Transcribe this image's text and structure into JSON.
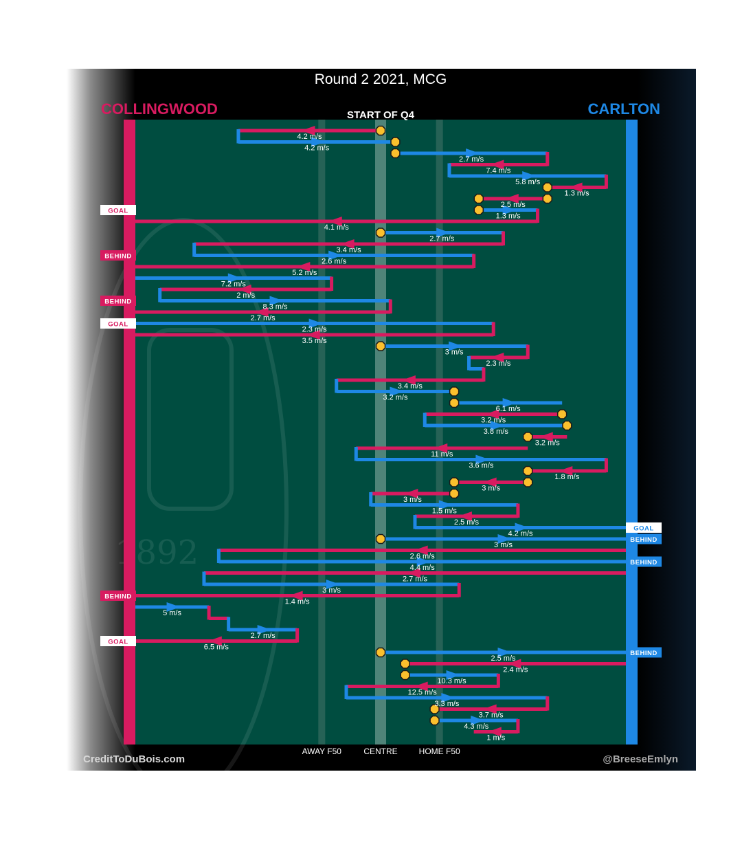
{
  "chart_data": {
    "type": "line",
    "title": "Round 2 2021, MCG",
    "subtitle": "START OF Q4",
    "teams": {
      "left": "COLLINGWOOD",
      "right": "CARLTON"
    },
    "colors": {
      "collingwood": "#d81b60",
      "carlton": "#1e88e5",
      "field": "#004d40",
      "background": "#000000",
      "stoppage": "#fbc02d"
    },
    "x_axis": {
      "range": [
        0,
        100
      ],
      "ticks": [
        {
          "x": 38,
          "label": "AWAY F50"
        },
        {
          "x": 50,
          "label": "CENTRE"
        },
        {
          "x": 62,
          "label": "HOME F50"
        }
      ]
    },
    "footer": {
      "left": "CreditToDuBois.com",
      "right": "@BreeseEmlyn"
    },
    "watermark": {
      "year": "1892"
    },
    "score_events": [
      {
        "side": "left",
        "label": "GOAL",
        "row": 8
      },
      {
        "side": "left",
        "label": "BEHIND",
        "row": 12
      },
      {
        "side": "left",
        "label": "BEHIND",
        "row": 16
      },
      {
        "side": "left",
        "label": "GOAL",
        "row": 18
      },
      {
        "side": "right",
        "label": "GOAL",
        "row": 36
      },
      {
        "side": "right",
        "label": "BEHIND",
        "row": 37
      },
      {
        "side": "right",
        "label": "BEHIND",
        "row": 39
      },
      {
        "side": "left",
        "label": "BEHIND",
        "row": 42
      },
      {
        "side": "left",
        "label": "GOAL",
        "row": 46
      },
      {
        "side": "right",
        "label": "BEHIND",
        "row": 47
      }
    ],
    "series": [
      {
        "row": 1,
        "team": "collingwood",
        "from": 50,
        "to": 21,
        "speed": "4.2 m/s",
        "stoppage_start": true
      },
      {
        "row": 2,
        "team": "carlton",
        "from": 21,
        "to": 53,
        "speed": "4.2 m/s",
        "stoppage_end": true
      },
      {
        "row": 3,
        "team": "carlton",
        "from": 53,
        "to": 84,
        "speed": "2.7 m/s",
        "stoppage_start": true
      },
      {
        "row": 4,
        "team": "collingwood",
        "from": 84,
        "to": 64,
        "speed": "7.4 m/s"
      },
      {
        "row": 5,
        "team": "carlton",
        "from": 64,
        "to": 96,
        "speed": "5.8 m/s"
      },
      {
        "row": 6,
        "team": "collingwood",
        "from": 96,
        "to": 84,
        "speed": "1.3 m/s",
        "stoppage_end": true
      },
      {
        "row": 7,
        "team": "collingwood",
        "from": 84,
        "to": 70,
        "speed": "2.5 m/s",
        "stoppage_start": true,
        "stoppage_end": true
      },
      {
        "row": 8,
        "team": "carlton",
        "from": 70,
        "to": 82,
        "speed": "1.3 m/s",
        "stoppage_start": true
      },
      {
        "row": 9,
        "team": "collingwood",
        "from": 82,
        "to": 0,
        "speed": "4.1 m/s"
      },
      {
        "row": 10,
        "team": "carlton",
        "from": 50,
        "to": 75,
        "speed": "2.7 m/s",
        "stoppage_start": true
      },
      {
        "row": 11,
        "team": "collingwood",
        "from": 75,
        "to": 12,
        "speed": "3.4 m/s"
      },
      {
        "row": 12,
        "team": "carlton",
        "from": 12,
        "to": 69,
        "speed": "2.6 m/s"
      },
      {
        "row": 13,
        "team": "collingwood",
        "from": 69,
        "to": 0,
        "speed": "5.2 m/s"
      },
      {
        "row": 14,
        "team": "carlton",
        "from": 0,
        "to": 40,
        "speed": "7.2 m/s"
      },
      {
        "row": 15,
        "team": "collingwood",
        "from": 40,
        "to": 5,
        "speed": "2 m/s"
      },
      {
        "row": 16,
        "team": "carlton",
        "from": 5,
        "to": 52,
        "speed": "8.3 m/s"
      },
      {
        "row": 17,
        "team": "collingwood",
        "from": 52,
        "to": 0,
        "speed": "2.7 m/s"
      },
      {
        "row": 18,
        "team": "carlton",
        "from": 0,
        "to": 73,
        "speed": "2.3 m/s"
      },
      {
        "row": 19,
        "team": "collingwood",
        "from": 73,
        "to": 0,
        "speed": "3.5 m/s"
      },
      {
        "row": 20,
        "team": "carlton",
        "from": 50,
        "to": 80,
        "speed": "3 m/s",
        "stoppage_start": true
      },
      {
        "row": 21,
        "team": "collingwood",
        "from": 80,
        "to": 68,
        "speed": "2.3 m/s"
      },
      {
        "row": 22,
        "team": "carlton",
        "from": 68,
        "to": 71,
        "speed": ""
      },
      {
        "row": 23,
        "team": "collingwood",
        "from": 71,
        "to": 41,
        "speed": "3.4 m/s"
      },
      {
        "row": 24,
        "team": "carlton",
        "from": 41,
        "to": 65,
        "speed": "3.2 m/s",
        "stoppage_end": true
      },
      {
        "row": 25,
        "team": "carlton",
        "from": 65,
        "to": 87,
        "speed": "6.1 m/s",
        "stoppage_start": true
      },
      {
        "row": 26,
        "team": "collingwood",
        "from": 87,
        "to": 59,
        "speed": "3.2 m/s",
        "stoppage_start": true
      },
      {
        "row": 27,
        "team": "carlton",
        "from": 59,
        "to": 88,
        "speed": "3.8 m/s",
        "stoppage_end": true
      },
      {
        "row": 28,
        "team": "collingwood",
        "from": 88,
        "to": 80,
        "speed": "3.2 m/s",
        "stoppage_end": true
      },
      {
        "row": 29,
        "team": "collingwood",
        "from": 80,
        "to": 45,
        "speed": "11 m/s"
      },
      {
        "row": 30,
        "team": "carlton",
        "from": 45,
        "to": 96,
        "speed": "3.6 m/s"
      },
      {
        "row": 31,
        "team": "collingwood",
        "from": 96,
        "to": 80,
        "speed": "1.8 m/s",
        "stoppage_end": true
      },
      {
        "row": 32,
        "team": "collingwood",
        "from": 80,
        "to": 65,
        "speed": "3 m/s",
        "stoppage_start": true,
        "stoppage_end": true
      },
      {
        "row": 33,
        "team": "collingwood",
        "from": 65,
        "to": 48,
        "speed": "3 m/s",
        "stoppage_start": true
      },
      {
        "row": 34,
        "team": "carlton",
        "from": 48,
        "to": 78,
        "speed": "1.5 m/s"
      },
      {
        "row": 35,
        "team": "collingwood",
        "from": 78,
        "to": 57,
        "speed": "2.5 m/s"
      },
      {
        "row": 36,
        "team": "carlton",
        "from": 57,
        "to": 100,
        "speed": "4.2 m/s"
      },
      {
        "row": 37,
        "team": "carlton",
        "from": 50,
        "to": 100,
        "speed": "3 m/s",
        "stoppage_start": true
      },
      {
        "row": 38,
        "team": "collingwood",
        "from": 100,
        "to": 17,
        "speed": "2.6 m/s"
      },
      {
        "row": 39,
        "team": "carlton",
        "from": 17,
        "to": 100,
        "speed": "4.4 m/s"
      },
      {
        "row": 40,
        "team": "collingwood",
        "from": 100,
        "to": 14,
        "speed": "2.7 m/s"
      },
      {
        "row": 41,
        "team": "carlton",
        "from": 14,
        "to": 66,
        "speed": "3 m/s"
      },
      {
        "row": 42,
        "team": "collingwood",
        "from": 66,
        "to": 0,
        "speed": "1.4 m/s"
      },
      {
        "row": 43,
        "team": "carlton",
        "from": 0,
        "to": 15,
        "speed": "5 m/s"
      },
      {
        "row": 44,
        "team": "collingwood",
        "from": 15,
        "to": 19,
        "speed": ""
      },
      {
        "row": 45,
        "team": "carlton",
        "from": 19,
        "to": 33,
        "speed": "2.7 m/s"
      },
      {
        "row": 46,
        "team": "collingwood",
        "from": 33,
        "to": 0,
        "speed": "6.5 m/s"
      },
      {
        "row": 47,
        "team": "carlton",
        "from": 50,
        "to": 100,
        "speed": "2.5 m/s",
        "stoppage_start": true
      },
      {
        "row": 48,
        "team": "collingwood",
        "from": 100,
        "to": 55,
        "speed": "2.4 m/s",
        "stoppage_end": true
      },
      {
        "row": 49,
        "team": "carlton",
        "from": 55,
        "to": 74,
        "speed": "10.3 m/s",
        "stoppage_start": true
      },
      {
        "row": 50,
        "team": "collingwood",
        "from": 74,
        "to": 43,
        "speed": "12.5 m/s"
      },
      {
        "row": 51,
        "team": "carlton",
        "from": 43,
        "to": 84,
        "speed": "3.3 m/s"
      },
      {
        "row": 52,
        "team": "collingwood",
        "from": 84,
        "to": 61,
        "speed": "3.7 m/s",
        "stoppage_end": true
      },
      {
        "row": 53,
        "team": "carlton",
        "from": 61,
        "to": 78,
        "speed": "4.3 m/s",
        "stoppage_start": true
      },
      {
        "row": 54,
        "team": "collingwood",
        "from": 78,
        "to": 69,
        "speed": "1 m/s"
      }
    ]
  }
}
